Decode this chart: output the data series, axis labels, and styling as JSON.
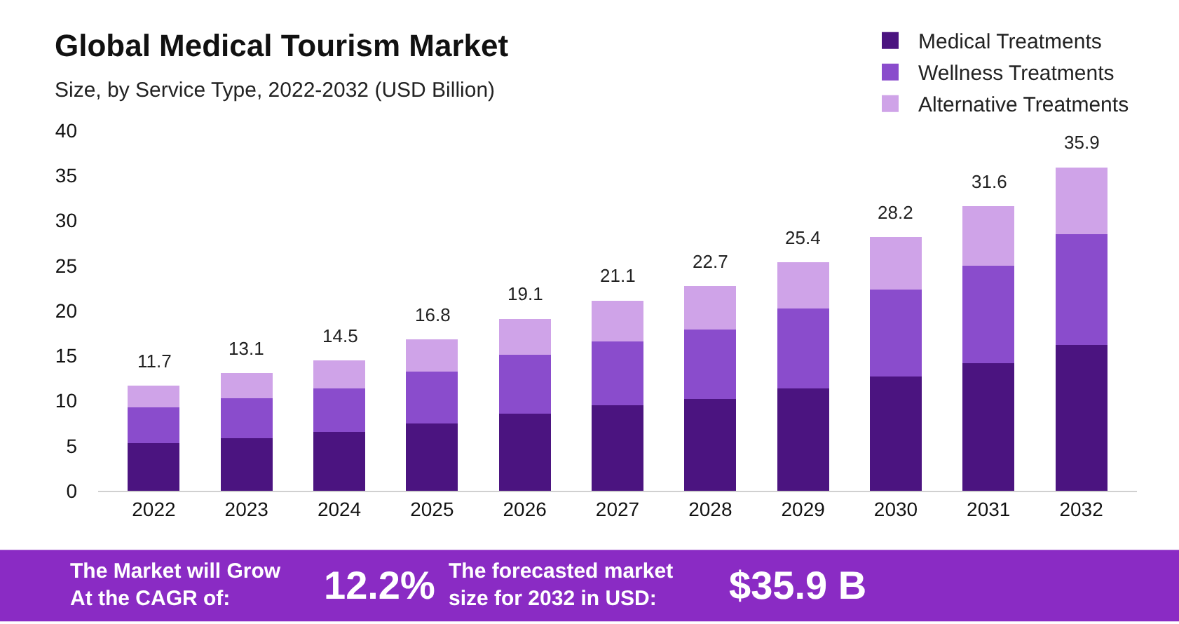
{
  "chart_data": {
    "type": "bar",
    "stacked": true,
    "title": "Global Medical Tourism Market",
    "subtitle": "Size, by Service Type, 2022-2032 (USD Billion)",
    "categories": [
      "2022",
      "2023",
      "2024",
      "2025",
      "2026",
      "2027",
      "2028",
      "2029",
      "2030",
      "2031",
      "2032"
    ],
    "series": [
      {
        "name": "Medical Treatments",
        "color": "#4b1480",
        "values": [
          5.3,
          5.8,
          6.5,
          7.5,
          8.6,
          9.5,
          10.2,
          11.4,
          12.7,
          14.2,
          16.2
        ]
      },
      {
        "name": "Wellness Treatments",
        "color": "#8a4ccc",
        "values": [
          4.0,
          4.5,
          4.9,
          5.7,
          6.5,
          7.1,
          7.7,
          8.8,
          9.6,
          10.8,
          12.3
        ]
      },
      {
        "name": "Alternative Treatments",
        "color": "#cfa3e8",
        "values": [
          2.4,
          2.8,
          3.1,
          3.6,
          4.0,
          4.5,
          4.8,
          5.2,
          5.9,
          6.6,
          7.4
        ]
      }
    ],
    "totals": [
      "11.7",
      "13.1",
      "14.5",
      "16.8",
      "19.1",
      "21.1",
      "22.7",
      "25.4",
      "28.2",
      "31.6",
      "35.9"
    ],
    "ylim": [
      0,
      40
    ],
    "yticks": [
      0,
      5,
      10,
      15,
      20,
      25,
      30,
      35,
      40
    ],
    "legend": "top right",
    "annotations": [
      "The Market will Grow\nAt the CAGR of:",
      "12.2%",
      "The forecasted market\nsize for 2032 in USD:",
      "$35.9 B"
    ]
  }
}
